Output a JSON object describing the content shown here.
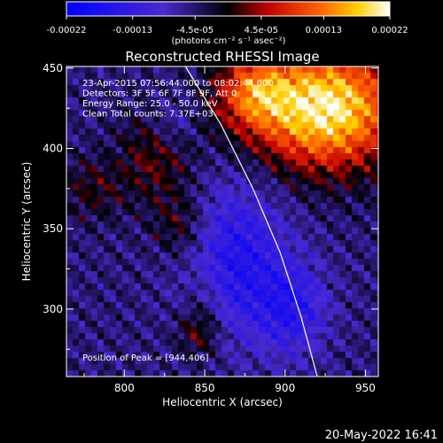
{
  "chart_data": {
    "type": "heatmap",
    "title": "Reconstructed RHESSI Image",
    "xlabel": "Heliocentric X (arcsec)",
    "ylabel": "Heliocentric Y (arcsec)",
    "xlim": [
      764,
      958
    ],
    "ylim": [
      258,
      451
    ],
    "x_ticks": [
      800,
      850,
      900,
      950
    ],
    "y_ticks": [
      300,
      350,
      400,
      450
    ],
    "colorbar": {
      "ticks": [
        -0.00022,
        -0.00013,
        -4.5e-05,
        4.5e-05,
        0.00013,
        0.00022
      ],
      "tick_labels": [
        "-0.00022",
        "-0.00013",
        "-4.5e-05",
        "4.5e-05",
        "0.00013",
        "0.00022"
      ],
      "unit_label": "(photons cm⁻² s⁻¹ asec⁻²)",
      "vmin": -0.00022,
      "vmax": 0.00022
    },
    "annotations": [
      "23-Apr-2015 07:56:44.000 to 08:02:44.000",
      "Detectors: 3F 5F 6F 7F 8F 9F, Att 0",
      "Energy Range: 25.0 - 50.0 keV",
      "Clean     Total counts: 7.37E+03"
    ],
    "peak_label": "Position of Peak = [944,406]",
    "peak_position": [
      944,
      406
    ],
    "limb_curve": [
      [
        838,
        451
      ],
      [
        860,
        415
      ],
      [
        880,
        375
      ],
      [
        897,
        335
      ],
      [
        910,
        295
      ],
      [
        920,
        258
      ]
    ],
    "hot_regions": [
      {
        "x": 925,
        "y": 425,
        "sx": 32,
        "sy": 26,
        "amp": 0.00026
      },
      {
        "x": 880,
        "y": 435,
        "sx": 16,
        "sy": 16,
        "amp": 0.00013
      },
      {
        "x": 820,
        "y": 395,
        "sx": 16,
        "sy": 20,
        "amp": 7e-05
      },
      {
        "x": 780,
        "y": 375,
        "sx": 14,
        "sy": 14,
        "amp": 5e-05
      },
      {
        "x": 835,
        "y": 352,
        "sx": 12,
        "sy": 14,
        "amp": 6e-05
      },
      {
        "x": 850,
        "y": 300,
        "sx": 9,
        "sy": 22,
        "amp": 4e-05
      },
      {
        "x": 845,
        "y": 285,
        "sx": 10,
        "sy": 10,
        "amp": 5e-05
      }
    ],
    "cold_regions": [
      {
        "x": 870,
        "y": 330,
        "sx": 22,
        "sy": 34,
        "amp": -0.00011
      },
      {
        "x": 905,
        "y": 300,
        "sx": 15,
        "sy": 20,
        "amp": -9e-05
      },
      {
        "x": 830,
        "y": 415,
        "sx": 10,
        "sy": 12,
        "amp": -5e-05
      }
    ]
  },
  "footer_timestamp": "20-May-2022 16:41"
}
